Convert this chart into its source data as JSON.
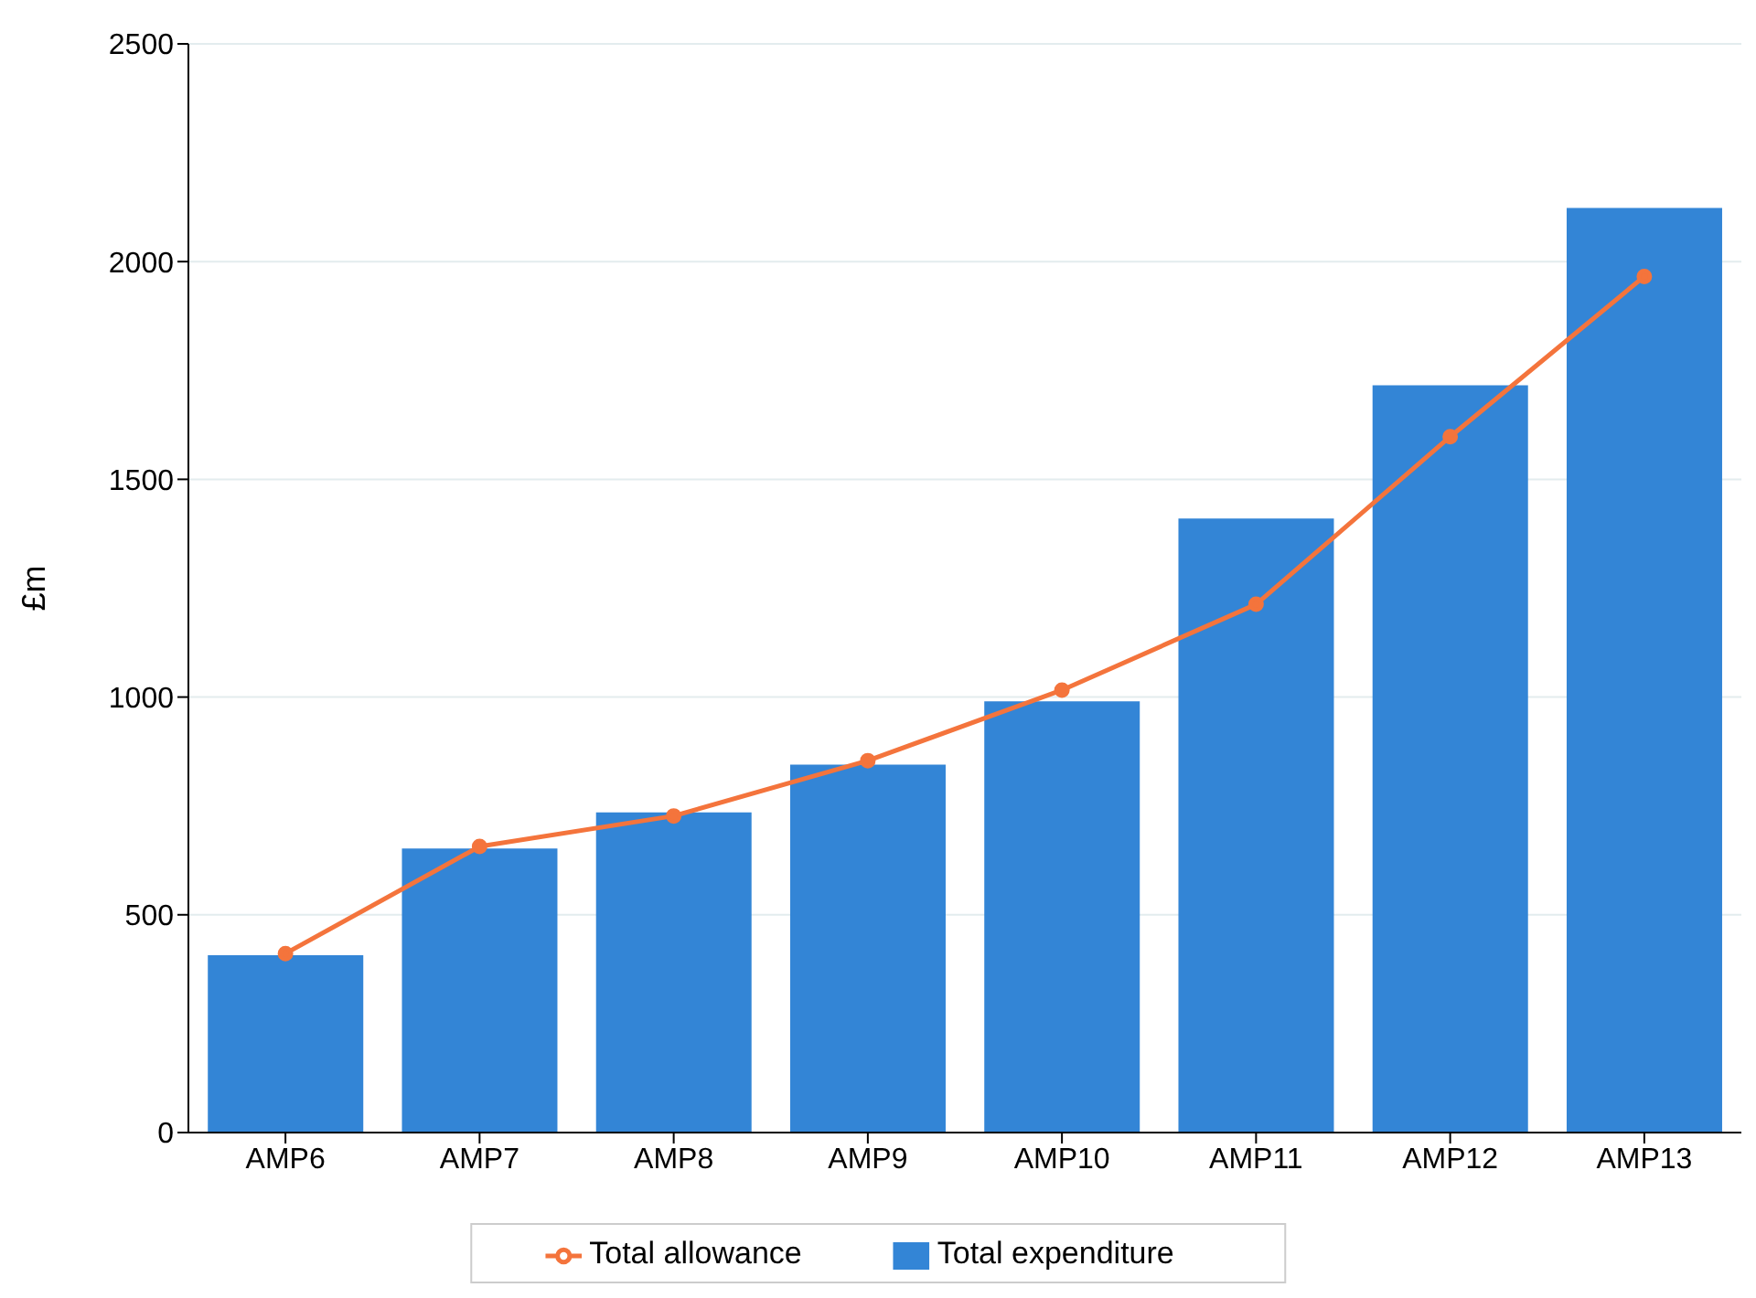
{
  "chart_data": {
    "type": "bar",
    "ylabel": "£m",
    "categories": [
      "AMP6",
      "AMP7",
      "AMP8",
      "AMP9",
      "AMP10",
      "AMP11",
      "AMP12",
      "AMP13"
    ],
    "series": [
      {
        "name": "Total expenditure",
        "type": "bar",
        "color": "#3385d6",
        "values": [
          407,
          652,
          735,
          845,
          990,
          1410,
          1716,
          2123
        ]
      },
      {
        "name": "Total allowance",
        "type": "line",
        "color": "#f4743c",
        "marker": "circle",
        "values": [
          411,
          657,
          727,
          854,
          1016,
          1213,
          1598,
          1966
        ]
      }
    ],
    "ylim": [
      0,
      2500
    ],
    "yticks": [
      0,
      500,
      1000,
      1500,
      2000,
      2500
    ],
    "grid": "y",
    "legend": "bottom"
  }
}
